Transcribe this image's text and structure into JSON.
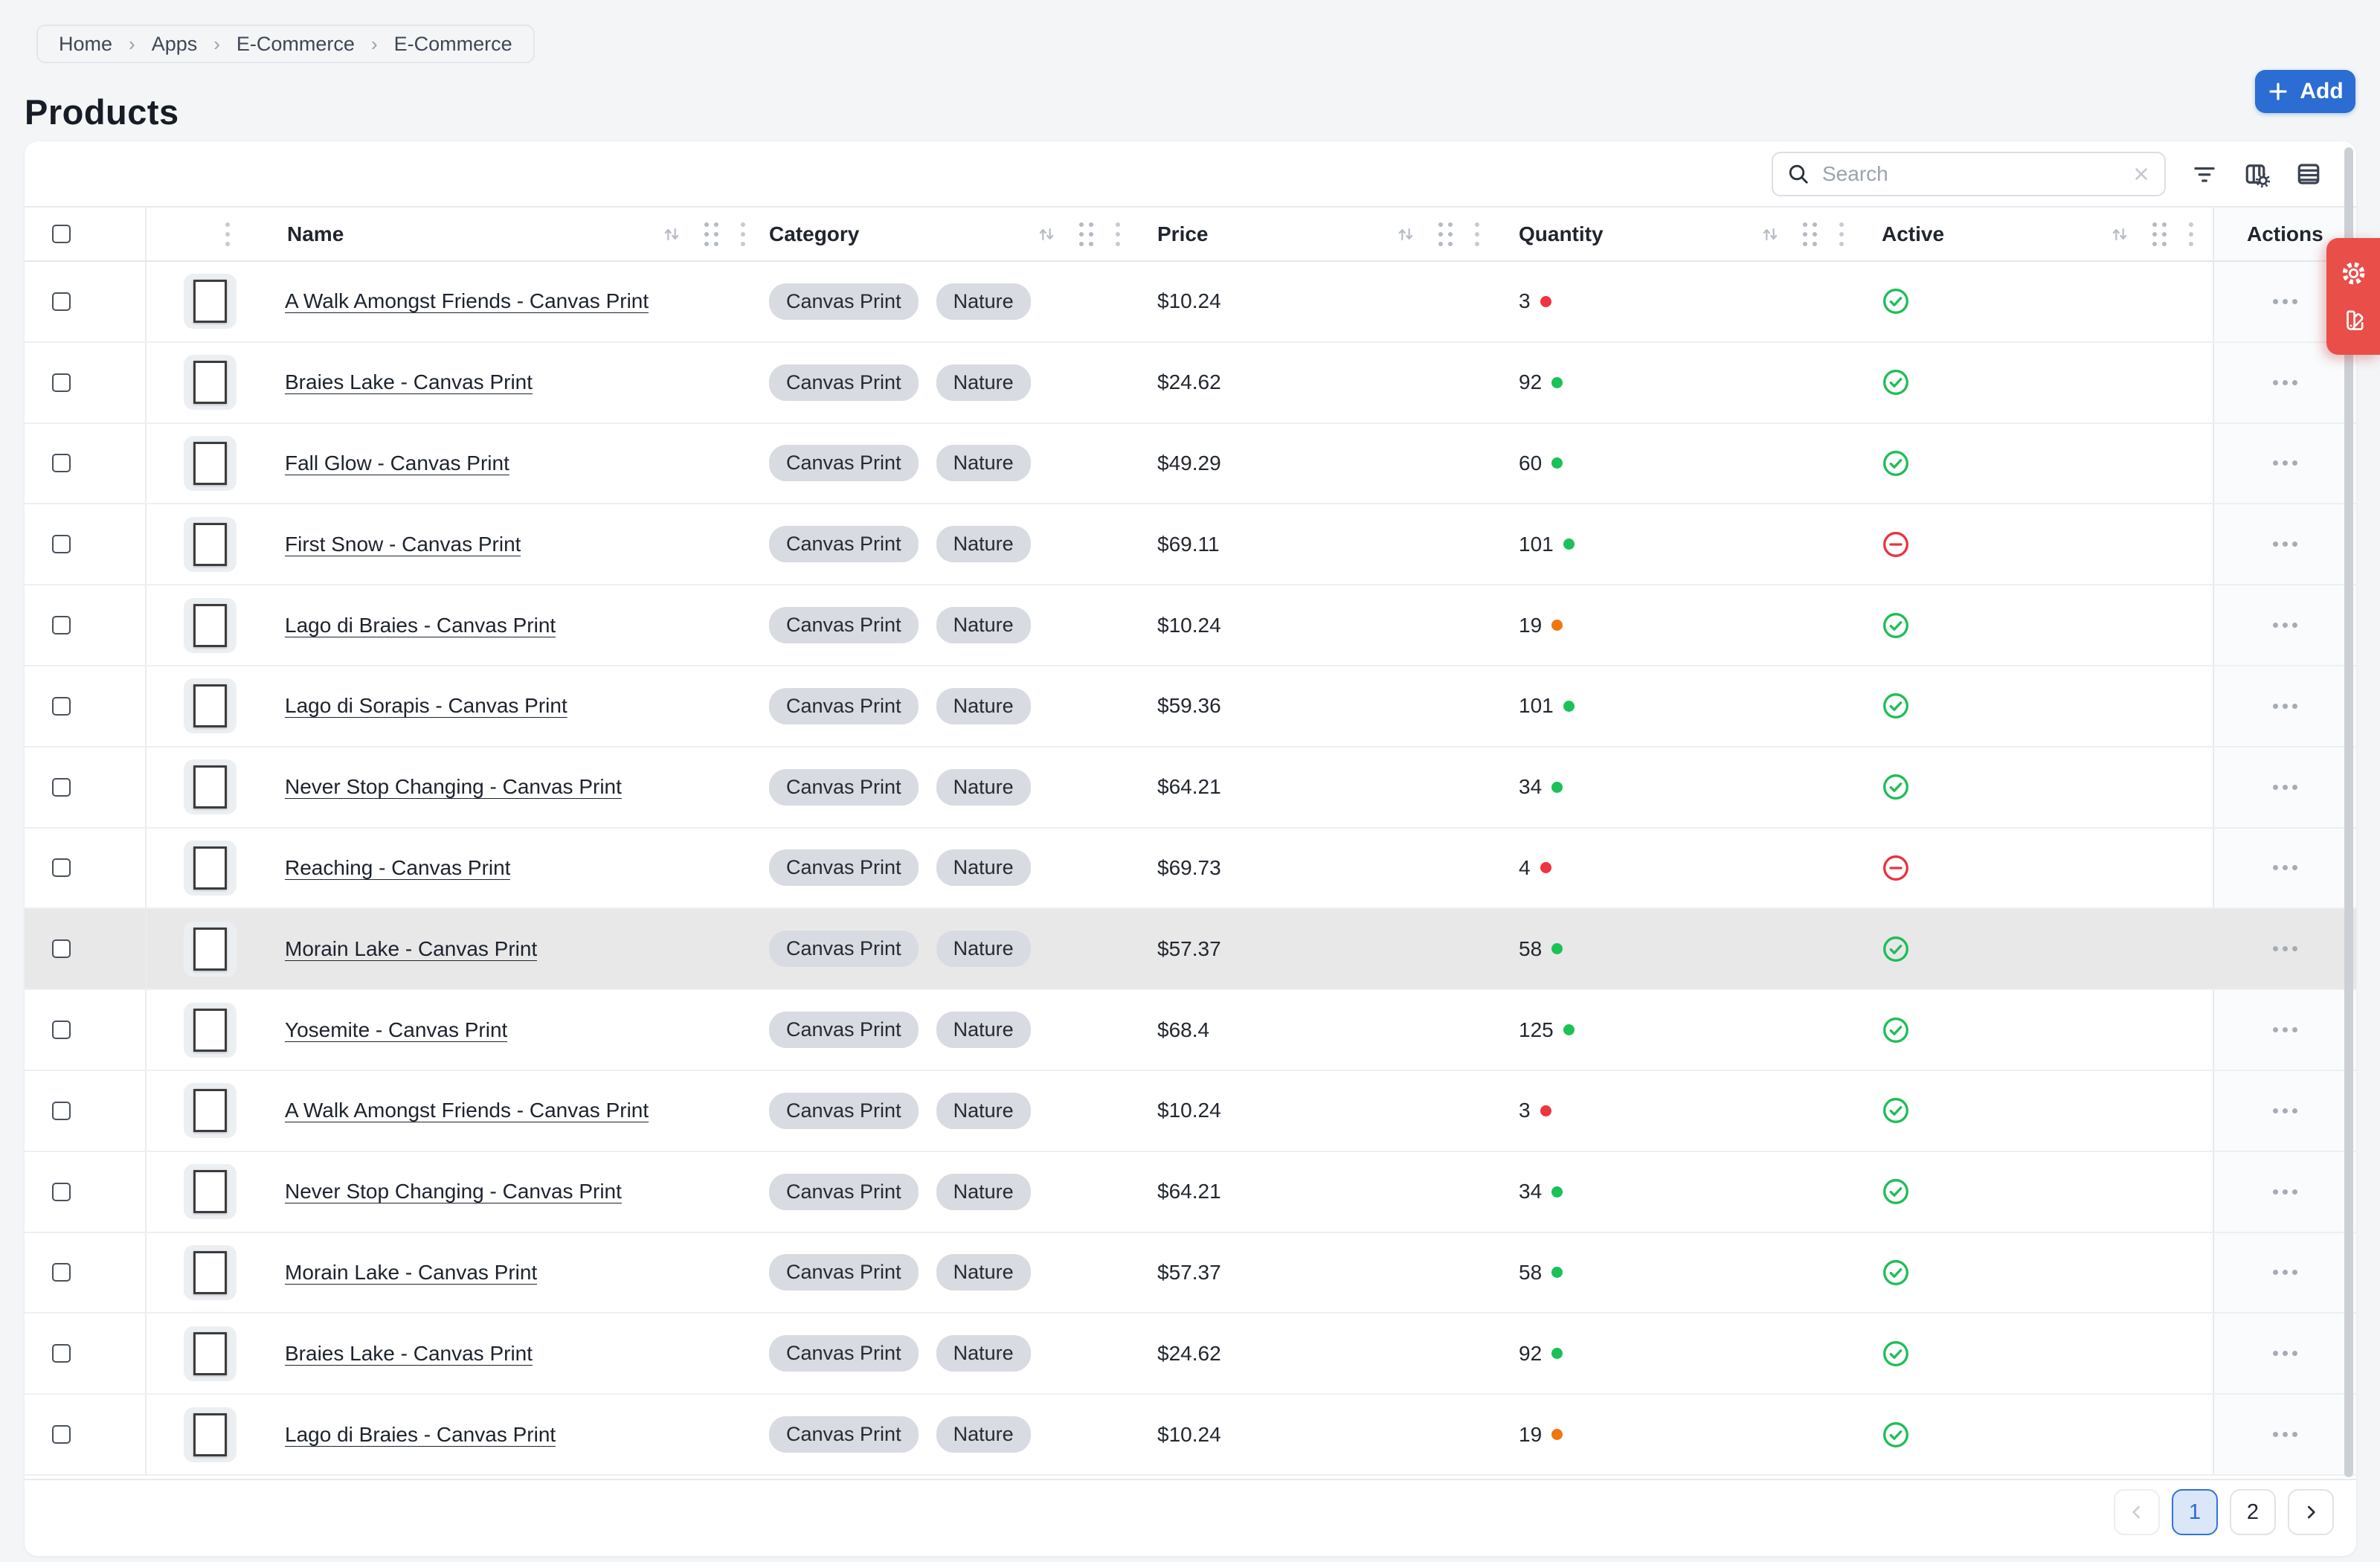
{
  "breadcrumb": {
    "items": [
      "Home",
      "Apps",
      "E-Commerce",
      "E-Commerce"
    ],
    "separator": "›"
  },
  "page": {
    "title": "Products"
  },
  "header_actions": {
    "add_label": "Add"
  },
  "toolbar": {
    "search_placeholder": "Search",
    "icons": [
      "filter-icon",
      "columns-settings-icon",
      "table-rows-icon"
    ]
  },
  "table": {
    "columns": [
      {
        "label": ""
      },
      {
        "label": "Name"
      },
      {
        "label": "Category"
      },
      {
        "label": "Price"
      },
      {
        "label": "Quantity"
      },
      {
        "label": "Active"
      },
      {
        "label": "Actions"
      }
    ],
    "rows": [
      {
        "name": "A Walk Amongst Friends - Canvas Print",
        "categories": [
          "Canvas Print",
          "Nature"
        ],
        "price": "$10.24",
        "quantity": "3",
        "stock": "low",
        "active": true,
        "highlighted": false,
        "thumb": [
          "#8fa4a6",
          "#47696e",
          "#2e8b8b",
          "#b79a5e"
        ]
      },
      {
        "name": "Braies Lake - Canvas Print",
        "categories": [
          "Canvas Print",
          "Nature"
        ],
        "price": "$24.62",
        "quantity": "92",
        "stock": "high",
        "active": true,
        "highlighted": false,
        "thumb": [
          "#d8b169",
          "#9a6c24",
          "#5e4114"
        ]
      },
      {
        "name": "Fall Glow - Canvas Print",
        "categories": [
          "Canvas Print",
          "Nature"
        ],
        "price": "$49.29",
        "quantity": "60",
        "stock": "high",
        "active": true,
        "highlighted": false,
        "thumb": [
          "#e3e7e9",
          "#b3bfc4",
          "#8d9ea5"
        ]
      },
      {
        "name": "First Snow - Canvas Print",
        "categories": [
          "Canvas Print",
          "Nature"
        ],
        "price": "$69.11",
        "quantity": "101",
        "stock": "high",
        "active": false,
        "highlighted": false,
        "thumb": [
          "#75726c",
          "#4a4438",
          "#8a5c26",
          "#2e2a24"
        ]
      },
      {
        "name": "Lago di Braies - Canvas Print",
        "categories": [
          "Canvas Print",
          "Nature"
        ],
        "price": "$10.24",
        "quantity": "19",
        "stock": "medium",
        "active": true,
        "highlighted": false,
        "thumb": [
          "#bcc5c8",
          "#5d8278",
          "#3f7668"
        ]
      },
      {
        "name": "Lago di Sorapis - Canvas Print",
        "categories": [
          "Canvas Print",
          "Nature"
        ],
        "price": "$59.36",
        "quantity": "101",
        "stock": "high",
        "active": true,
        "highlighted": false,
        "thumb": [
          "#93b0a0",
          "#2f6f5a",
          "#1f4f40"
        ]
      },
      {
        "name": "Never Stop Changing - Canvas Print",
        "categories": [
          "Canvas Print",
          "Nature"
        ],
        "price": "$64.21",
        "quantity": "34",
        "stock": "high",
        "active": true,
        "highlighted": false,
        "thumb": [
          "#dadcd3",
          "#a9b39b",
          "#7d8a74"
        ]
      },
      {
        "name": "Reaching - Canvas Print",
        "categories": [
          "Canvas Print",
          "Nature"
        ],
        "price": "$69.73",
        "quantity": "4",
        "stock": "low",
        "active": false,
        "highlighted": false,
        "thumb": [
          "#5c6b60",
          "#304038",
          "#1e2a24"
        ]
      },
      {
        "name": "Morain Lake - Canvas Print",
        "categories": [
          "Canvas Print",
          "Nature"
        ],
        "price": "$57.37",
        "quantity": "58",
        "stock": "high",
        "active": true,
        "highlighted": true,
        "thumb": [
          "#a3b6ca",
          "#50759f",
          "#2f5578"
        ]
      },
      {
        "name": "Yosemite - Canvas Print",
        "categories": [
          "Canvas Print",
          "Nature"
        ],
        "price": "$68.4",
        "quantity": "125",
        "stock": "high",
        "active": true,
        "highlighted": false,
        "thumb": [
          "#bab4c5",
          "#6f6a8a",
          "#4a4866"
        ]
      },
      {
        "name": "A Walk Amongst Friends - Canvas Print",
        "categories": [
          "Canvas Print",
          "Nature"
        ],
        "price": "$10.24",
        "quantity": "3",
        "stock": "low",
        "active": true,
        "highlighted": false,
        "thumb": [
          "#8fa4a6",
          "#47696e",
          "#2e8b8b",
          "#b79a5e"
        ]
      },
      {
        "name": "Never Stop Changing - Canvas Print",
        "categories": [
          "Canvas Print",
          "Nature"
        ],
        "price": "$64.21",
        "quantity": "34",
        "stock": "high",
        "active": true,
        "highlighted": false,
        "thumb": [
          "#dadcd3",
          "#a9b39b",
          "#7d8a74"
        ]
      },
      {
        "name": "Morain Lake - Canvas Print",
        "categories": [
          "Canvas Print",
          "Nature"
        ],
        "price": "$57.37",
        "quantity": "58",
        "stock": "high",
        "active": true,
        "highlighted": false,
        "thumb": [
          "#a3b6ca",
          "#50759f",
          "#2f5578"
        ]
      },
      {
        "name": "Braies Lake - Canvas Print",
        "categories": [
          "Canvas Print",
          "Nature"
        ],
        "price": "$24.62",
        "quantity": "92",
        "stock": "high",
        "active": true,
        "highlighted": false,
        "thumb": [
          "#d8b169",
          "#9a6c24",
          "#5e4114"
        ]
      },
      {
        "name": "Lago di Braies - Canvas Print",
        "categories": [
          "Canvas Print",
          "Nature"
        ],
        "price": "$10.24",
        "quantity": "19",
        "stock": "medium",
        "active": true,
        "highlighted": false,
        "thumb": [
          "#bcc5c8",
          "#5d8278",
          "#3f7668"
        ]
      }
    ]
  },
  "pagination": {
    "pages": [
      "1",
      "2"
    ],
    "current": "1"
  },
  "side_panel": {
    "color": "#e94e49",
    "icons": [
      "settings-gear-icon",
      "swatch-palette-icon"
    ]
  },
  "colors": {
    "accent_blue": "#2b6dd2",
    "stock": {
      "high": "#1cc157",
      "medium": "#f0760e",
      "low": "#ee3440"
    },
    "active_check": "#1fbd58",
    "inactive_minus": "#e63540",
    "panel_red": "#e94e49",
    "row_highlight": "#e8e8e9"
  }
}
